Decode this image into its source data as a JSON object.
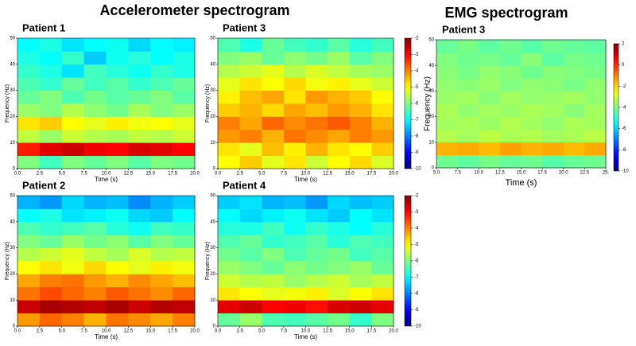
{
  "headings": [
    "Accelerometer spectrogram",
    "EMG spectrogram"
  ],
  "chart_data": [
    {
      "type": "heatmap",
      "title": "Patient 1",
      "x_label": "Time (s)",
      "y_label": "Frequency (Hz)",
      "x": [
        1.25,
        3.75,
        6.25,
        8.75,
        11.25,
        13.75,
        16.25,
        18.75
      ],
      "y": [
        2.5,
        7.5,
        12.5,
        17.5,
        22.5,
        27.5,
        32.5,
        37.5,
        42.5,
        47.5
      ],
      "z": [
        [
          -6,
          -6.5,
          -6,
          -6.2,
          -6,
          -6.3,
          -6,
          -6.1
        ],
        [
          -3.2,
          -2.8,
          -2.6,
          -2.9,
          -3,
          -2.7,
          -2.8,
          -3
        ],
        [
          -5.5,
          -5.8,
          -5.4,
          -5.6,
          -5.7,
          -5.5,
          -5.6,
          -5.4
        ],
        [
          -4.8,
          -4.6,
          -5,
          -5.2,
          -4.9,
          -5.1,
          -5,
          -5.2
        ],
        [
          -5.8,
          -6,
          -5.6,
          -5.9,
          -6.1,
          -5.7,
          -6,
          -5.8
        ],
        [
          -6.2,
          -6,
          -6.4,
          -6.1,
          -6.3,
          -6.2,
          -6,
          -6.3
        ],
        [
          -6.4,
          -6.6,
          -6.2,
          -6.5,
          -6.3,
          -6.6,
          -6.4,
          -6.2
        ],
        [
          -6.6,
          -6.8,
          -7.2,
          -6.5,
          -6.7,
          -6.9,
          -6.6,
          -6.8
        ],
        [
          -6.8,
          -7,
          -6.6,
          -7.4,
          -6.9,
          -6.7,
          -7,
          -6.8
        ],
        [
          -7,
          -6.8,
          -7.2,
          -7,
          -6.9,
          -7.3,
          -7,
          -7.1
        ]
      ],
      "zlim": [
        -10,
        -2
      ],
      "xlim": [
        0,
        20
      ],
      "ylim": [
        0,
        50
      ],
      "xticks": [
        {
          "value": 0,
          "label": "0.0"
        },
        {
          "value": 2.5,
          "label": "2.5"
        },
        {
          "value": 5,
          "label": "5.0"
        },
        {
          "value": 7.5,
          "label": "7.5"
        },
        {
          "value": 10,
          "label": "10.0"
        },
        {
          "value": 12.5,
          "label": "12.5"
        },
        {
          "value": 15,
          "label": "15.0"
        },
        {
          "value": 17.5,
          "label": "17.5"
        },
        {
          "value": 20,
          "label": "20.0"
        }
      ],
      "yticks": [
        0,
        10,
        20,
        30,
        40,
        50
      ]
    },
    {
      "type": "heatmap",
      "title": "Patient 3",
      "x_label": "Time (s)",
      "y_label": "Frequency (Hz)",
      "x": [
        1.25,
        3.75,
        6.25,
        8.75,
        11.25,
        13.75,
        16.25,
        18.75
      ],
      "y": [
        2.5,
        7.5,
        12.5,
        17.5,
        22.5,
        27.5,
        32.5,
        37.5,
        42.5,
        47.5
      ],
      "z": [
        [
          -5,
          -4.6,
          -5.2,
          -4.8,
          -5.4,
          -5,
          -4.7,
          -5.3
        ],
        [
          -4.8,
          -5.2,
          -4.5,
          -4.9,
          -4.4,
          -4.8,
          -5,
          -4.6
        ],
        [
          -4.2,
          -4,
          -4.4,
          -3.9,
          -4.1,
          -4.3,
          -4,
          -4.2
        ],
        [
          -4,
          -4.3,
          -3.8,
          -4.1,
          -3.9,
          -3.7,
          -4,
          -4.4
        ],
        [
          -4.6,
          -4.4,
          -4.7,
          -4.3,
          -4.5,
          -4.2,
          -4.4,
          -4.8
        ],
        [
          -4.9,
          -4.5,
          -4.3,
          -4.8,
          -4.2,
          -4.4,
          -4.6,
          -5
        ],
        [
          -5.2,
          -4.8,
          -5,
          -4.7,
          -5.1,
          -4.9,
          -5.2,
          -5.4
        ],
        [
          -5.6,
          -5.4,
          -5.2,
          -5.6,
          -5.3,
          -5.5,
          -5.7,
          -5.8
        ],
        [
          -6,
          -5.8,
          -6.2,
          -5.9,
          -6.1,
          -5.8,
          -6.3,
          -6
        ],
        [
          -6.4,
          -6.8,
          -6.2,
          -6.5,
          -6.6,
          -6.3,
          -6.7,
          -6.5
        ]
      ],
      "zlim": [
        -10,
        -2
      ],
      "xlim": [
        0,
        20
      ],
      "ylim": [
        0,
        50
      ],
      "xticks": [
        {
          "value": 0,
          "label": "0.0"
        },
        {
          "value": 2.5,
          "label": "2.5"
        },
        {
          "value": 5,
          "label": "5.0"
        },
        {
          "value": 7.5,
          "label": "7.5"
        },
        {
          "value": 10,
          "label": "10.0"
        },
        {
          "value": 12.5,
          "label": "12.5"
        },
        {
          "value": 15,
          "label": "15.0"
        },
        {
          "value": 17.5,
          "label": "17.5"
        },
        {
          "value": 20,
          "label": "20.0"
        }
      ],
      "yticks": [
        0,
        10,
        20,
        30,
        40,
        50
      ],
      "colorbar_ticks": [
        -2,
        -3,
        -4,
        -5,
        -6,
        -7,
        -8,
        -9,
        -10
      ]
    },
    {
      "type": "heatmap",
      "title": "Patient 2",
      "x_label": "Time (s)",
      "y_label": "Frequency (Hz)",
      "x": [
        1.25,
        3.75,
        6.25,
        8.75,
        11.25,
        13.75,
        16.25,
        18.75
      ],
      "y": [
        2.5,
        7.5,
        12.5,
        17.5,
        22.5,
        27.5,
        32.5,
        37.5,
        42.5,
        47.5
      ],
      "z": [
        [
          -4.2,
          -3.8,
          -4,
          -4.4,
          -3.9,
          -4.1,
          -4.3,
          -4
        ],
        [
          -2.6,
          -2.3,
          -2.4,
          -2.5,
          -2.3,
          -2.6,
          -2.4,
          -2.5
        ],
        [
          -3.9,
          -3.6,
          -3.8,
          -4,
          -3.7,
          -3.9,
          -4.1,
          -3.8
        ],
        [
          -4.3,
          -4,
          -3.9,
          -4.2,
          -4.4,
          -4.1,
          -4.3,
          -4.5
        ],
        [
          -5,
          -4.8,
          -5.1,
          -4.7,
          -5,
          -5.2,
          -4.9,
          -5.1
        ],
        [
          -5.6,
          -5.4,
          -5.2,
          -5.5,
          -5.7,
          -5.3,
          -5.6,
          -5.5
        ],
        [
          -6,
          -6.2,
          -5.8,
          -6.1,
          -5.9,
          -6.3,
          -6,
          -6.2
        ],
        [
          -6.4,
          -6.6,
          -6.5,
          -6.3,
          -6.7,
          -6.9,
          -6.5,
          -6.6
        ],
        [
          -7,
          -6.8,
          -7.2,
          -7.1,
          -6.9,
          -7.3,
          -7.4,
          -7
        ],
        [
          -7.6,
          -7.8,
          -7.3,
          -7.6,
          -7.5,
          -7.9,
          -7.6,
          -7.4
        ]
      ],
      "zlim": [
        -10,
        -2
      ],
      "xlim": [
        0,
        20
      ],
      "ylim": [
        0,
        50
      ],
      "xticks": [
        {
          "value": 0,
          "label": "0.0"
        },
        {
          "value": 2.5,
          "label": "2.5"
        },
        {
          "value": 5,
          "label": "5.0"
        },
        {
          "value": 7.5,
          "label": "7.5"
        },
        {
          "value": 10,
          "label": "10.0"
        },
        {
          "value": 12.5,
          "label": "12.5"
        },
        {
          "value": 15,
          "label": "15.0"
        },
        {
          "value": 17.5,
          "label": "17.5"
        },
        {
          "value": 20,
          "label": "20.0"
        }
      ],
      "yticks": [
        0,
        10,
        20,
        30,
        40,
        50
      ]
    },
    {
      "type": "heatmap",
      "title": "Patient 4",
      "x_label": "Time (s)",
      "y_label": "Frequency (Hz)",
      "x": [
        1.25,
        3.75,
        6.25,
        8.75,
        11.25,
        13.75,
        16.25,
        18.75
      ],
      "y": [
        2.5,
        7.5,
        12.5,
        17.5,
        22.5,
        27.5,
        32.5,
        37.5,
        42.5,
        47.5
      ],
      "z": [
        [
          -6.2,
          -5.8,
          -6.4,
          -6.5,
          -6.3,
          -6.1,
          -6.6,
          -6
        ],
        [
          -2.8,
          -2.6,
          -3,
          -2.9,
          -3.1,
          -2.7,
          -2.6,
          -2.8
        ],
        [
          -4.8,
          -5,
          -5.2,
          -5.1,
          -4.9,
          -5.3,
          -5,
          -4.8
        ],
        [
          -5.4,
          -5.6,
          -5.5,
          -5.8,
          -5.6,
          -5.4,
          -5.7,
          -5.5
        ],
        [
          -5.8,
          -6,
          -6.2,
          -5.9,
          -6.1,
          -6,
          -5.8,
          -6.2
        ],
        [
          -6.1,
          -6.3,
          -6,
          -6.4,
          -6.2,
          -6.1,
          -6.5,
          -6.3
        ],
        [
          -6.4,
          -6.2,
          -6.6,
          -6.5,
          -6.3,
          -6.7,
          -6.4,
          -6.5
        ],
        [
          -6.7,
          -6.8,
          -6.5,
          -6.9,
          -6.6,
          -6.8,
          -7,
          -6.7
        ],
        [
          -7,
          -7.3,
          -7.1,
          -6.9,
          -7.2,
          -7.4,
          -7,
          -7.2
        ],
        [
          -7.4,
          -7.2,
          -7.6,
          -7.5,
          -7.8,
          -7.3,
          -7.5,
          -7.4
        ]
      ],
      "zlim": [
        -10,
        -2
      ],
      "xlim": [
        0,
        20
      ],
      "ylim": [
        0,
        50
      ],
      "xticks": [
        {
          "value": 0,
          "label": "0.0"
        },
        {
          "value": 2.5,
          "label": "2.5"
        },
        {
          "value": 5,
          "label": "5.0"
        },
        {
          "value": 7.5,
          "label": "7.5"
        },
        {
          "value": 10,
          "label": "10.0"
        },
        {
          "value": 12.5,
          "label": "12.5"
        },
        {
          "value": 15,
          "label": "15.0"
        },
        {
          "value": 17.5,
          "label": "17.5"
        },
        {
          "value": 20,
          "label": "20.0"
        }
      ],
      "yticks": [
        0,
        10,
        20,
        30,
        40,
        50
      ],
      "colorbar_ticks": [
        -2,
        -3,
        -4,
        -5,
        -6,
        -7,
        -8,
        -9,
        -10
      ]
    },
    {
      "type": "heatmap",
      "title": "Patient 3",
      "x_label": "Time (s)",
      "y_label": "Frequency (Hz)",
      "x": [
        6.25,
        8.75,
        11.25,
        13.75,
        16.25,
        18.75,
        21.25,
        23.75
      ],
      "y": [
        2.5,
        7.5,
        12.5,
        17.5,
        22.5,
        27.5,
        32.5,
        37.5,
        42.5,
        47.5
      ],
      "z": [
        [
          -4.2,
          -4.4,
          -4.1,
          -4.3,
          -4.2,
          -4.5,
          -4.3,
          -4.2
        ],
        [
          -1.6,
          -1.5,
          -1.7,
          -1.4,
          -1.6,
          -1.5,
          -1.7,
          -1.5
        ],
        [
          -3.4,
          -3.6,
          -3.3,
          -3.5,
          -3.4,
          -3.6,
          -3.5,
          -3.3
        ],
        [
          -3.6,
          -3.5,
          -3.7,
          -3.4,
          -3.6,
          -3.8,
          -3.5,
          -3.6
        ],
        [
          -3.5,
          -3.8,
          -3.6,
          -3.7,
          -3.5,
          -3.6,
          -3.9,
          -3.6
        ],
        [
          -3.7,
          -3.6,
          -3.9,
          -3.6,
          -3.8,
          -3.7,
          -3.6,
          -3.8
        ],
        [
          -3.8,
          -3.9,
          -3.7,
          -4,
          -3.8,
          -3.9,
          -4.1,
          -3.8
        ],
        [
          -3.9,
          -4.1,
          -3.8,
          -3.9,
          -4.2,
          -3.9,
          -4,
          -4.1
        ],
        [
          -4,
          -4.2,
          -4.1,
          -4.3,
          -3.9,
          -4.4,
          -4.1,
          -4.2
        ],
        [
          -4.3,
          -4.1,
          -4.4,
          -4.2,
          -4.5,
          -4.2,
          -4.3,
          -4.4
        ]
      ],
      "zlim": [
        -10,
        2
      ],
      "xlim": [
        5,
        25
      ],
      "ylim": [
        0,
        50
      ],
      "xticks": [
        {
          "value": 5,
          "label": "5.0"
        },
        {
          "value": 7.5,
          "label": "7.5"
        },
        {
          "value": 10,
          "label": "10.0"
        },
        {
          "value": 12.5,
          "label": "12.5"
        },
        {
          "value": 15,
          "label": "15.0"
        },
        {
          "value": 17.5,
          "label": "17.5"
        },
        {
          "value": 20,
          "label": "20.0"
        },
        {
          "value": 22.5,
          "label": "22.5"
        },
        {
          "value": 25,
          "label": "25."
        }
      ],
      "yticks": [
        0,
        10,
        20,
        30,
        40,
        50
      ],
      "colorbar_ticks": [
        2,
        0,
        -2,
        -4,
        -6,
        -8,
        -10
      ]
    }
  ]
}
